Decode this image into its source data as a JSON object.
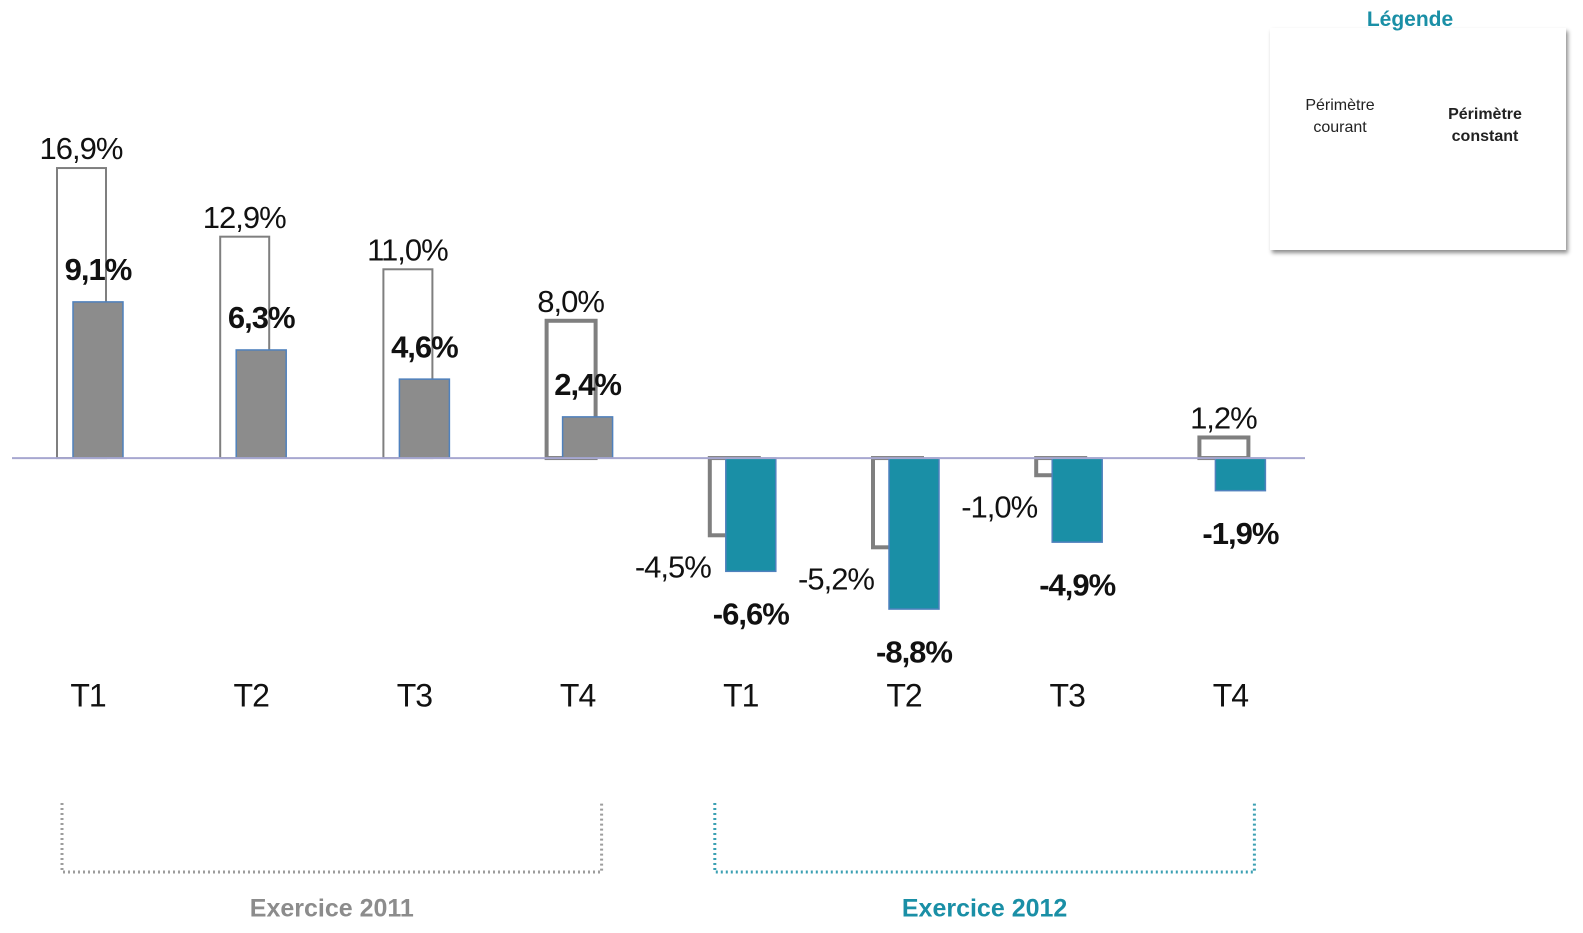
{
  "chart_data": {
    "type": "bar",
    "categories": [
      "T1",
      "T2",
      "T3",
      "T4",
      "T1",
      "T2",
      "T3",
      "T4"
    ],
    "series": [
      {
        "name": "Périmètre courant",
        "color": "#7f7f7f",
        "values": [
          16.9,
          12.9,
          11.0,
          8.0,
          -4.5,
          -5.2,
          -1.0,
          1.2
        ],
        "value_labels": [
          "16,9%",
          "12,9%",
          "11,0%",
          "8,0%",
          "-4,5%",
          "-5,2%",
          "-1,0%",
          "1,2%"
        ]
      },
      {
        "name": "Périmètre constant",
        "color": "#1a8fa6",
        "values": [
          9.1,
          6.3,
          4.6,
          2.4,
          -6.6,
          -8.8,
          -4.9,
          -1.9
        ],
        "value_labels": [
          "9,1%",
          "6,3%",
          "4,6%",
          "2,4%",
          "-6,6%",
          "-8,8%",
          "-4,9%",
          "-1,9%"
        ]
      }
    ],
    "groups": [
      {
        "label": "Exercice 2011",
        "count": 4,
        "color": "#8c8c8c"
      },
      {
        "label": "Exercice 2012",
        "count": 4,
        "color": "#1a8fa6"
      }
    ],
    "legend_title": "Légende",
    "ylim": [
      -12,
      19
    ]
  }
}
